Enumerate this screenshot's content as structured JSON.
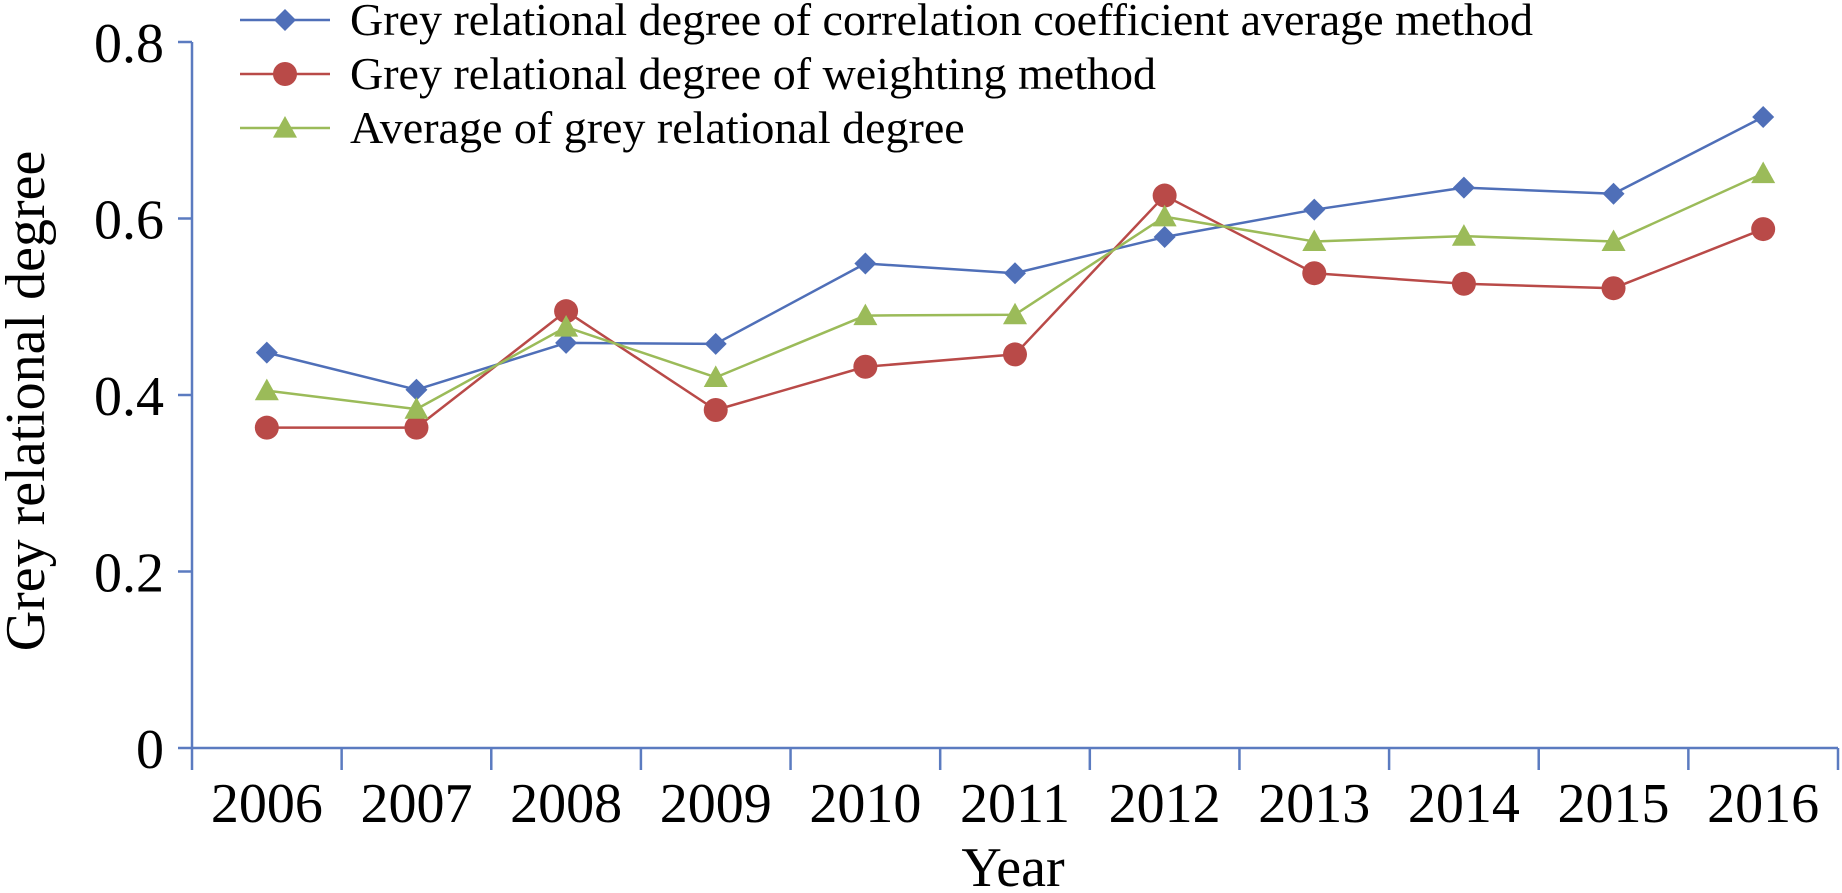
{
  "chart_data": {
    "type": "line",
    "xlabel": "Year",
    "ylabel": "Grey relational degree",
    "categories": [
      "2006",
      "2007",
      "2008",
      "2009",
      "2010",
      "2011",
      "2012",
      "2013",
      "2014",
      "2015",
      "2016"
    ],
    "ylim": [
      0,
      0.8
    ],
    "yticks": [
      0,
      0.2,
      0.4,
      0.6,
      0.8
    ],
    "ytick_labels": [
      "0",
      "0.2",
      "0.4",
      "0.6",
      "0.8"
    ],
    "grid": false,
    "legend_position": "top-left",
    "series": [
      {
        "name": "Grey relational degree of correlation coefficient average method",
        "marker": "diamond",
        "color": "#4f6fb8",
        "values": [
          0.448,
          0.406,
          0.459,
          0.458,
          0.549,
          0.538,
          0.579,
          0.61,
          0.635,
          0.628,
          0.715
        ]
      },
      {
        "name": "Grey relational degree of weighting method",
        "marker": "circle",
        "color": "#b94a48",
        "values": [
          0.363,
          0.363,
          0.495,
          0.383,
          0.432,
          0.446,
          0.626,
          0.538,
          0.526,
          0.521,
          0.588
        ]
      },
      {
        "name": "Average of grey relational degree",
        "marker": "triangle",
        "color": "#9bbb59",
        "values": [
          0.405,
          0.384,
          0.477,
          0.42,
          0.49,
          0.491,
          0.602,
          0.574,
          0.58,
          0.574,
          0.651
        ]
      }
    ]
  }
}
